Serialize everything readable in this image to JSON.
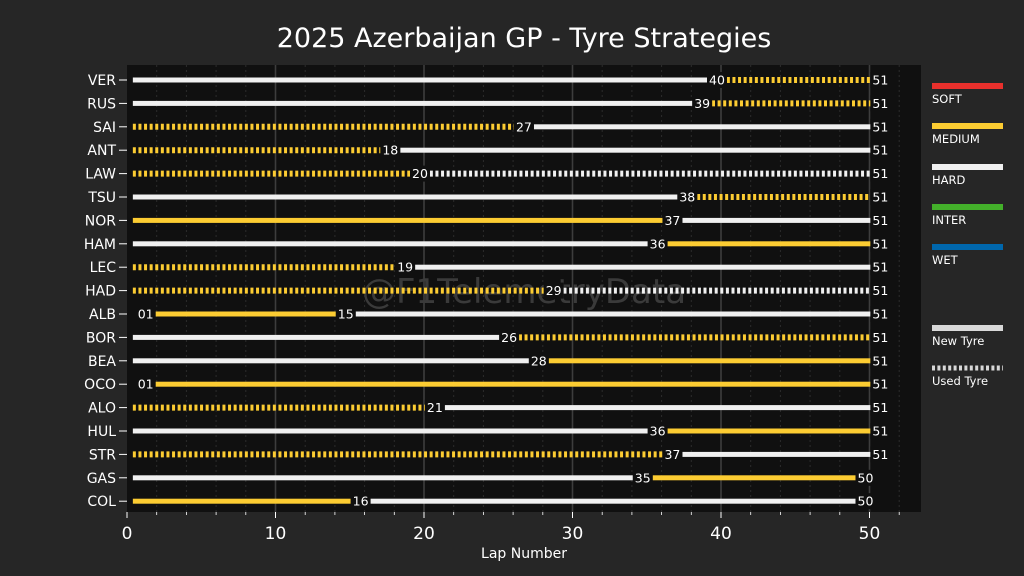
{
  "chart_data": {
    "type": "bar",
    "title": "2025 Azerbaijan GP - Tyre Strategies",
    "xlabel": "Lap Number",
    "ylabel": "",
    "xlim": [
      0,
      53.5
    ],
    "xticks": [
      0,
      10,
      20,
      30,
      40,
      50
    ],
    "grid": "vertical minor gridlines",
    "watermark": "@F1TelemetryData",
    "compound_colors": {
      "SOFT": "#e8302c",
      "MEDIUM": "#fccc32",
      "HARD": "#f0f0f0",
      "INTER": "#43b02a",
      "WET": "#0067ad"
    },
    "legend": [
      {
        "label": "SOFT",
        "compound": "SOFT",
        "style": "solid"
      },
      {
        "label": "MEDIUM",
        "compound": "MEDIUM",
        "style": "solid"
      },
      {
        "label": "HARD",
        "compound": "HARD",
        "style": "solid"
      },
      {
        "label": "INTER",
        "compound": "INTER",
        "style": "solid"
      },
      {
        "label": "WET",
        "compound": "WET",
        "style": "solid"
      },
      {
        "label": "New Tyre",
        "compound": "NEW",
        "style": "solid"
      },
      {
        "label": "Used Tyre",
        "compound": "NEW",
        "style": "dotted"
      }
    ],
    "legend_placement": "right",
    "drivers": [
      {
        "driver": "VER",
        "stints": [
          {
            "compound": "HARD",
            "start": 1,
            "end": 40,
            "used": false
          },
          {
            "compound": "MEDIUM",
            "start": 41,
            "end": 51,
            "used": true
          }
        ],
        "labels": [
          "40",
          "51"
        ]
      },
      {
        "driver": "RUS",
        "stints": [
          {
            "compound": "HARD",
            "start": 1,
            "end": 39,
            "used": false
          },
          {
            "compound": "MEDIUM",
            "start": 40,
            "end": 51,
            "used": true
          }
        ],
        "labels": [
          "39",
          "51"
        ]
      },
      {
        "driver": "SAI",
        "stints": [
          {
            "compound": "MEDIUM",
            "start": 1,
            "end": 27,
            "used": true
          },
          {
            "compound": "HARD",
            "start": 28,
            "end": 51,
            "used": false
          }
        ],
        "labels": [
          "27",
          "51"
        ]
      },
      {
        "driver": "ANT",
        "stints": [
          {
            "compound": "MEDIUM",
            "start": 1,
            "end": 18,
            "used": true
          },
          {
            "compound": "HARD",
            "start": 19,
            "end": 51,
            "used": false
          }
        ],
        "labels": [
          "18",
          "51"
        ]
      },
      {
        "driver": "LAW",
        "stints": [
          {
            "compound": "MEDIUM",
            "start": 1,
            "end": 20,
            "used": true
          },
          {
            "compound": "HARD",
            "start": 21,
            "end": 51,
            "used": true
          }
        ],
        "labels": [
          "20",
          "51"
        ]
      },
      {
        "driver": "TSU",
        "stints": [
          {
            "compound": "HARD",
            "start": 1,
            "end": 38,
            "used": false
          },
          {
            "compound": "MEDIUM",
            "start": 39,
            "end": 51,
            "used": true
          }
        ],
        "labels": [
          "38",
          "51"
        ]
      },
      {
        "driver": "NOR",
        "stints": [
          {
            "compound": "MEDIUM",
            "start": 1,
            "end": 37,
            "used": false
          },
          {
            "compound": "HARD",
            "start": 38,
            "end": 51,
            "used": false
          }
        ],
        "labels": [
          "37",
          "51"
        ]
      },
      {
        "driver": "HAM",
        "stints": [
          {
            "compound": "HARD",
            "start": 1,
            "end": 36,
            "used": false
          },
          {
            "compound": "MEDIUM",
            "start": 37,
            "end": 51,
            "used": false
          }
        ],
        "labels": [
          "36",
          "51"
        ]
      },
      {
        "driver": "LEC",
        "stints": [
          {
            "compound": "MEDIUM",
            "start": 1,
            "end": 19,
            "used": true
          },
          {
            "compound": "HARD",
            "start": 20,
            "end": 51,
            "used": false
          }
        ],
        "labels": [
          "19",
          "51"
        ]
      },
      {
        "driver": "HAD",
        "stints": [
          {
            "compound": "MEDIUM",
            "start": 1,
            "end": 29,
            "used": true
          },
          {
            "compound": "HARD",
            "start": 30,
            "end": 51,
            "used": true
          }
        ],
        "labels": [
          "29",
          "51"
        ]
      },
      {
        "driver": "ALB",
        "stints": [
          {
            "compound": "MEDIUM",
            "start": 2,
            "end": 15,
            "used": false
          },
          {
            "compound": "HARD",
            "start": 16,
            "end": 51,
            "used": false
          }
        ],
        "labels": [
          "01",
          "15",
          "51"
        ]
      },
      {
        "driver": "BOR",
        "stints": [
          {
            "compound": "HARD",
            "start": 1,
            "end": 26,
            "used": false
          },
          {
            "compound": "MEDIUM",
            "start": 27,
            "end": 51,
            "used": true
          }
        ],
        "labels": [
          "26",
          "51"
        ]
      },
      {
        "driver": "BEA",
        "stints": [
          {
            "compound": "HARD",
            "start": 1,
            "end": 28,
            "used": false
          },
          {
            "compound": "MEDIUM",
            "start": 29,
            "end": 51,
            "used": false
          }
        ],
        "labels": [
          "28",
          "51"
        ]
      },
      {
        "driver": "OCO",
        "stints": [
          {
            "compound": "MEDIUM",
            "start": 2,
            "end": 51,
            "used": false
          }
        ],
        "labels": [
          "01",
          "51"
        ]
      },
      {
        "driver": "ALO",
        "stints": [
          {
            "compound": "MEDIUM",
            "start": 1,
            "end": 21,
            "used": true
          },
          {
            "compound": "HARD",
            "start": 22,
            "end": 51,
            "used": false
          }
        ],
        "labels": [
          "21",
          "51"
        ]
      },
      {
        "driver": "HUL",
        "stints": [
          {
            "compound": "HARD",
            "start": 1,
            "end": 36,
            "used": false
          },
          {
            "compound": "MEDIUM",
            "start": 37,
            "end": 51,
            "used": false
          }
        ],
        "labels": [
          "36",
          "51"
        ]
      },
      {
        "driver": "STR",
        "stints": [
          {
            "compound": "MEDIUM",
            "start": 1,
            "end": 37,
            "used": true
          },
          {
            "compound": "HARD",
            "start": 38,
            "end": 51,
            "used": false
          }
        ],
        "labels": [
          "37",
          "51"
        ]
      },
      {
        "driver": "GAS",
        "stints": [
          {
            "compound": "HARD",
            "start": 1,
            "end": 35,
            "used": false
          },
          {
            "compound": "MEDIUM",
            "start": 36,
            "end": 50,
            "used": false
          }
        ],
        "labels": [
          "35",
          "50"
        ]
      },
      {
        "driver": "COL",
        "stints": [
          {
            "compound": "MEDIUM",
            "start": 1,
            "end": 16,
            "used": false
          },
          {
            "compound": "HARD",
            "start": 17,
            "end": 50,
            "used": false
          }
        ],
        "labels": [
          "16",
          "50"
        ]
      }
    ]
  }
}
